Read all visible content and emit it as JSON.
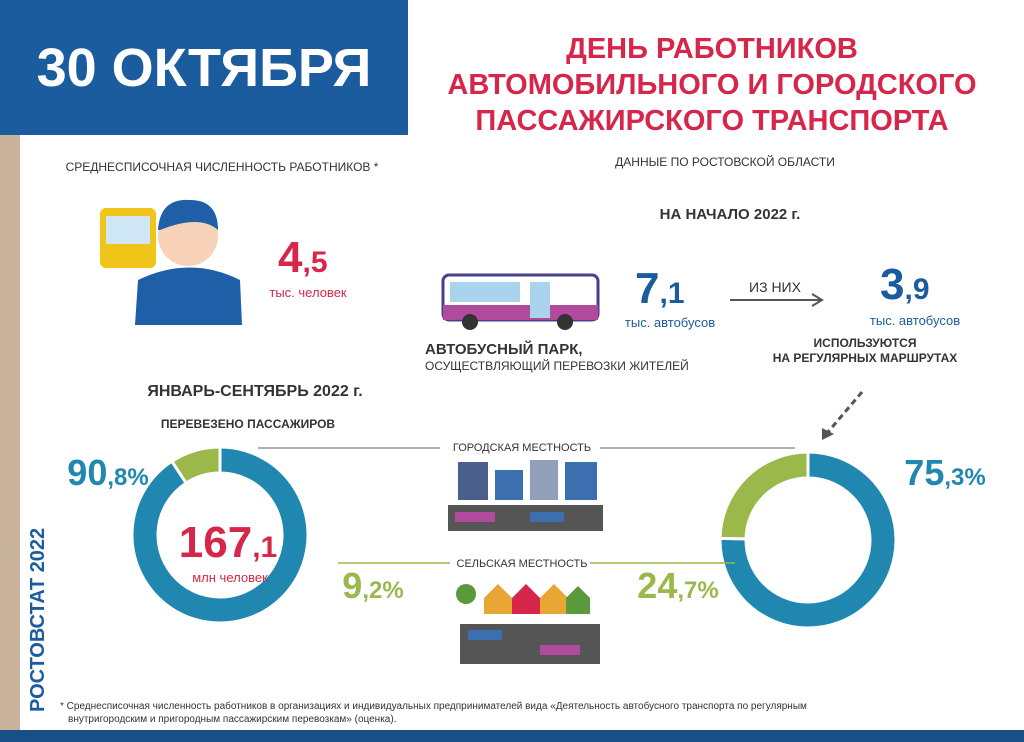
{
  "header": {
    "date": "30 ОКТЯБРЯ",
    "title": [
      "ДЕНЬ РАБОТНИКОВ",
      "АВТОМОБИЛЬНОГО И ГОРОДСКОГО",
      "ПАССАЖИРСКОГО ТРАНСПОРТА"
    ],
    "subtitle": "ДАННЫЕ ПО РОСТОВСКОЙ ОБЛАСТИ"
  },
  "workers": {
    "label": "СРЕДНЕСПИСОЧНАЯ ЧИСЛЕННОСТЬ РАБОТНИКОВ *",
    "value": [
      "4",
      ",5"
    ],
    "unit": "тыс. человек"
  },
  "fleet": {
    "period": "НА НАЧАЛО 2022 г.",
    "total": [
      "7",
      ",1"
    ],
    "total_unit": "тыс. автобусов",
    "arrow": "ИЗ НИХ",
    "regular": [
      "3",
      ",9"
    ],
    "regular_unit": "тыс. автобусов",
    "caption": [
      "АВТОБУСНЫЙ ПАРК,",
      "ОСУЩЕСТВЛЯЮЩИЙ ПЕРЕВОЗКИ ЖИТЕЛЕЙ"
    ],
    "regular_caption": [
      "ИСПОЛЬЗУЮТСЯ",
      "НА РЕГУЛЯРНЫХ МАРШРУТАХ"
    ]
  },
  "passengers": {
    "period": "ЯНВАРЬ-СЕНТЯБРЬ 2022 г.",
    "label": "ПЕРЕВЕЗЕНО ПАССАЖИРОВ",
    "total": [
      "167",
      ",1"
    ],
    "unit": "млн человек"
  },
  "areas": [
    "ГОРОДСКАЯ МЕСТНОСТЬ",
    "СЕЛЬСКАЯ МЕСТНОСТЬ"
  ],
  "donuts": [
    {
      "segments": [
        {
          "value": 90.8,
          "label": [
            "90",
            ",8%"
          ],
          "color": "#1f87b0"
        },
        {
          "value": 9.2,
          "label": [
            "9",
            ",2%"
          ],
          "color": "#9bb84a"
        }
      ]
    },
    {
      "segments": [
        {
          "value": 75.3,
          "label": [
            "75",
            ",3%"
          ],
          "color": "#1f87b0"
        },
        {
          "value": 24.7,
          "label": [
            "24",
            ",7%"
          ],
          "color": "#9bb84a"
        }
      ]
    }
  ],
  "source": "РОСТОВСТАТ 2022",
  "footnote": [
    "* Среднесписочная численность работников в организациях и индивидуальных предпринимателей вида «Деятельность автобусного транспорта по регулярным",
    "внутригородским и пригородным пассажирским перевозкам» (оценка)."
  ]
}
